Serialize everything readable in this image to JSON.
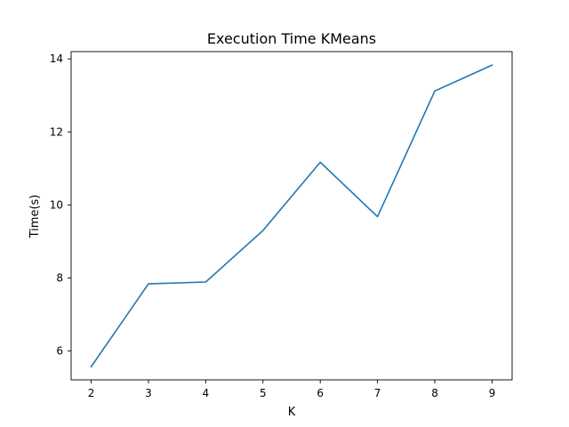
{
  "chart_data": {
    "type": "line",
    "title": "Execution Time KMeans",
    "xlabel": "K",
    "ylabel": "Time(s)",
    "x": [
      2,
      3,
      4,
      5,
      6,
      7,
      8,
      9
    ],
    "series": [
      {
        "values": [
          5.57,
          7.84,
          7.89,
          9.3,
          11.17,
          9.68,
          13.12,
          13.83
        ]
      }
    ],
    "xlim": [
      1.65,
      9.35
    ],
    "ylim": [
      5.21,
      14.2
    ],
    "xticks": [
      "2",
      "3",
      "4",
      "5",
      "6",
      "7",
      "8",
      "9"
    ],
    "yticks": [
      "6",
      "8",
      "10",
      "12",
      "14"
    ],
    "grid": false,
    "line_color": "#1f77b4"
  }
}
